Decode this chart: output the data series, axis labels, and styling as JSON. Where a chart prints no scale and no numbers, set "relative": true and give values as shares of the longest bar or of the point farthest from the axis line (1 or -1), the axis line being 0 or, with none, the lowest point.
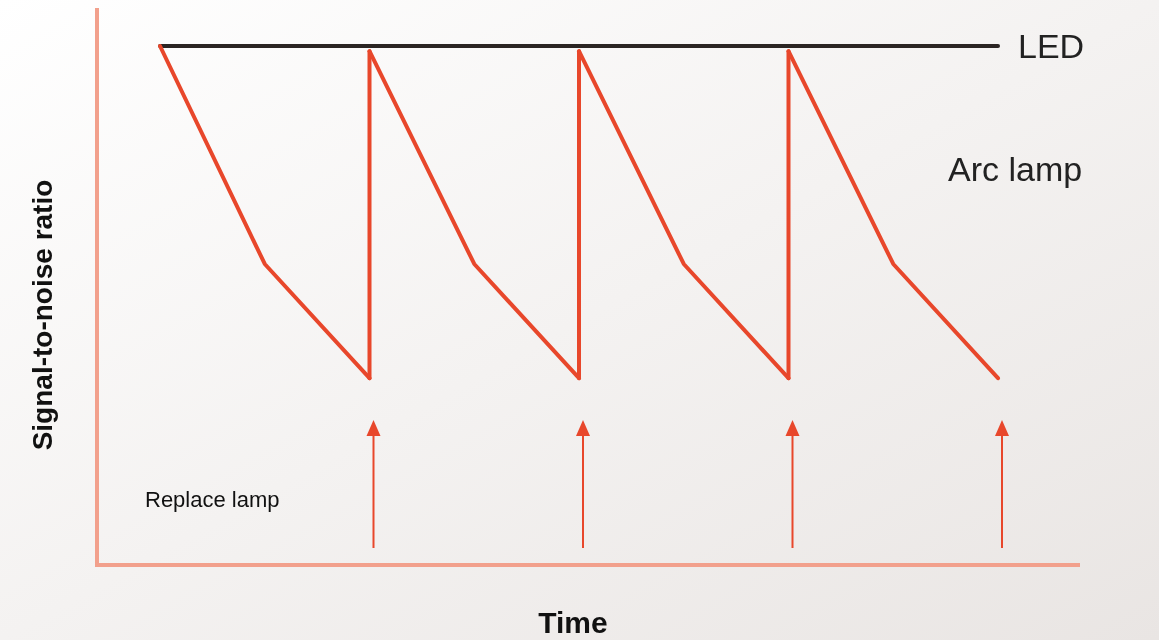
{
  "chart_data": {
    "type": "line",
    "relative": true,
    "xlabel": "Time",
    "ylabel": "Signal-to-noise ratio",
    "legend": false,
    "annotations": [
      "Replace lamp"
    ],
    "categories": [
      null,
      null,
      null,
      null,
      null,
      null,
      null,
      null,
      null
    ],
    "series": [
      {
        "name": "LED",
        "color": "#2b2523",
        "values": [
          1,
          1,
          1,
          1,
          1,
          1,
          1,
          1,
          1
        ]
      },
      {
        "color": "#e8472b",
        "values": [
          1,
          0.58,
          0.36,
          null,
          null,
          null,
          null,
          null,
          null
        ]
      },
      {
        "color": "#e8472b",
        "values": [
          null,
          null,
          0.99,
          0.58,
          0.36,
          null,
          null,
          null,
          null
        ]
      },
      {
        "color": "#e8472b",
        "values": [
          null,
          null,
          null,
          null,
          0.99,
          0.58,
          0.36,
          null,
          null
        ]
      },
      {
        "name": "Arc lamp",
        "color": "#e8472b",
        "values": [
          null,
          null,
          null,
          null,
          null,
          null,
          0.99,
          0.58,
          0.36
        ]
      }
    ]
  }
}
